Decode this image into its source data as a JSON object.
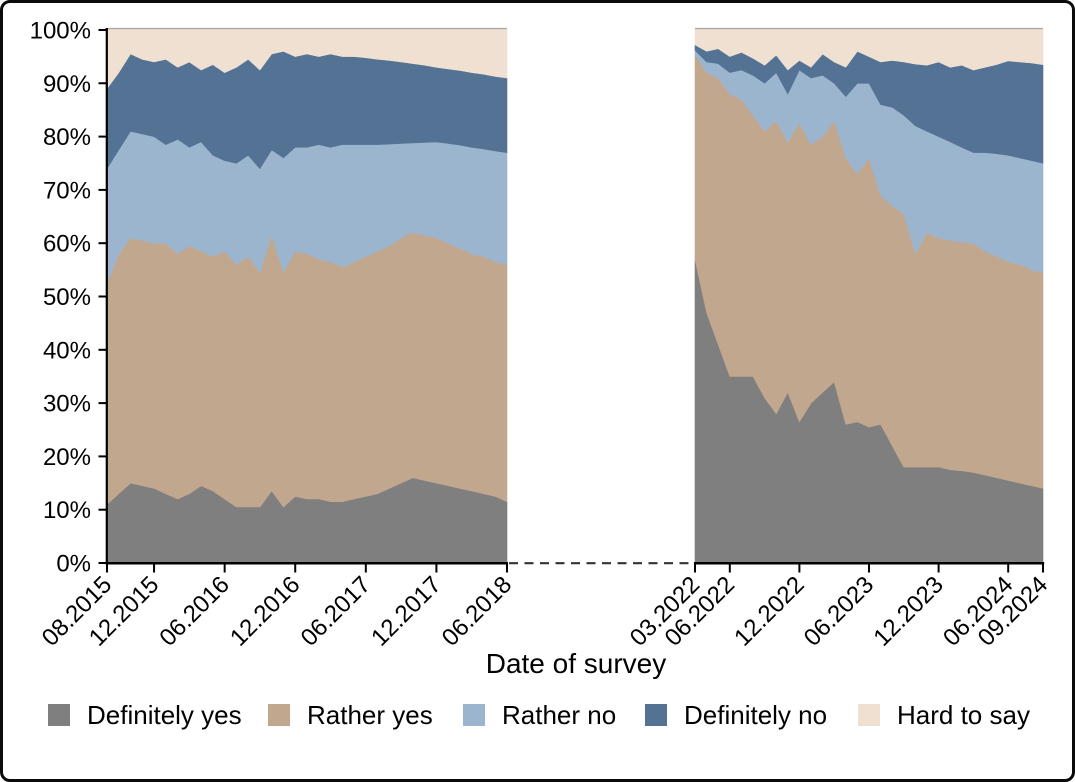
{
  "chart_data": {
    "type": "area",
    "stacked": true,
    "ylim": [
      0,
      100
    ],
    "grid": false,
    "legend_position": "bottom",
    "axis_break_between_panels": true,
    "xlabel": "Date of survey",
    "yticks": [
      "0%",
      "10%",
      "20%",
      "30%",
      "40%",
      "50%",
      "60%",
      "70%",
      "80%",
      "90%",
      "100%"
    ],
    "legend": [
      {
        "label": "Definitely yes",
        "color": "#7f7f7f"
      },
      {
        "label": "Rather yes",
        "color": "#c2a78f"
      },
      {
        "label": "Rather no",
        "color": "#9cb5ce"
      },
      {
        "label": "Definitely no",
        "color": "#547394"
      },
      {
        "label": "Hard to say",
        "color": "#efe0d2"
      }
    ],
    "panels": [
      {
        "name": "2015-2018",
        "point_interval": "monthly",
        "first_point": "08.2015",
        "last_point": "06.2018",
        "ticks": [
          {
            "label": "08.2015",
            "m": 0
          },
          {
            "label": "12.2015",
            "m": 4
          },
          {
            "label": "06.2016",
            "m": 10
          },
          {
            "label": "12.2016",
            "m": 16
          },
          {
            "label": "06.2017",
            "m": 22
          },
          {
            "label": "12.2017",
            "m": 28
          },
          {
            "label": "06.2018",
            "m": 34
          }
        ],
        "series": [
          {
            "name": "Definitely yes",
            "values": [
              11,
              13,
              15,
              14.5,
              14,
              13,
              12,
              13,
              14.5,
              13.5,
              12,
              10.5,
              10.5,
              10.5,
              13.5,
              10.5,
              12.5,
              12,
              12,
              11.5,
              11.5,
              12,
              12.5,
              13,
              14,
              15,
              16,
              15.5,
              15,
              14.5,
              14,
              13.5,
              13,
              12.5,
              11.5
            ]
          },
          {
            "name": "Rather yes",
            "values": [
              41.5,
              45,
              46,
              46,
              46,
              47,
              46,
              46.5,
              44,
              44,
              46.5,
              45.5,
              47,
              44,
              48,
              44,
              46,
              46,
              45,
              45,
              44,
              44.5,
              45,
              45.5,
              45.5,
              46,
              46,
              46,
              46,
              45.5,
              45,
              44.5,
              44.5,
              44,
              44.5
            ]
          },
          {
            "name": "Rather no",
            "values": [
              21.5,
              19.5,
              20,
              20,
              20,
              18.5,
              21.5,
              18.5,
              20.5,
              19,
              17,
              19,
              19,
              19.5,
              16,
              21.5,
              19.5,
              20,
              21.5,
              21.5,
              23,
              22,
              21,
              20,
              19.1,
              17.7,
              16.8,
              17.4,
              18,
              18.7,
              19.4,
              20,
              20.2,
              20.8,
              21
            ]
          },
          {
            "name": "Definitely no",
            "values": [
              15,
              14.5,
              14.5,
              14,
              14,
              16,
              13.5,
              16,
              13.5,
              17,
              16.5,
              18,
              18,
              18.5,
              18,
              20,
              17,
              17.5,
              16.5,
              17.5,
              16.5,
              16.5,
              16.3,
              16,
              15.7,
              15.3,
              14.9,
              14.5,
              14,
              14,
              14,
              14,
              14,
              14,
              14
            ]
          },
          {
            "name": "Hard to say",
            "values": [
              11,
              8,
              4.5,
              5.5,
              6,
              5.5,
              7,
              6,
              7.5,
              6.5,
              8,
              7,
              5.5,
              7.5,
              4.5,
              4,
              5,
              4.5,
              5,
              4.5,
              5,
              5,
              5.2,
              5.5,
              5.7,
              6,
              6.3,
              6.6,
              7,
              7.3,
              7.6,
              8,
              8.3,
              8.7,
              9
            ]
          }
        ]
      },
      {
        "name": "2022-2024",
        "point_interval": "monthly",
        "first_point": "03.2022",
        "last_point": "09.2024",
        "ticks": [
          {
            "label": "03.2022",
            "m": 0
          },
          {
            "label": "06.2022",
            "m": 3
          },
          {
            "label": "12.2022",
            "m": 9
          },
          {
            "label": "06.2023",
            "m": 15
          },
          {
            "label": "12.2023",
            "m": 21
          },
          {
            "label": "06.2024",
            "m": 27
          },
          {
            "label": "09.2024",
            "m": 30
          }
        ],
        "series": [
          {
            "name": "Definitely yes",
            "values": [
              57,
              47,
              41,
              35,
              35,
              35,
              31,
              28,
              32,
              26.5,
              30,
              32,
              34,
              26,
              26.5,
              25.5,
              26,
              22,
              18,
              18,
              18,
              18,
              17.5,
              17.3,
              17,
              16.5,
              16,
              15.5,
              15,
              14.5,
              14
            ]
          },
          {
            "name": "Rather yes",
            "values": [
              38.5,
              45,
              50,
              53,
              52,
              49,
              50,
              55,
              47,
              56,
              48.5,
              48,
              49,
              50,
              46.5,
              50.5,
              43,
              45,
              47.5,
              40,
              44,
              43,
              43,
              42.9,
              43,
              42,
              41.5,
              41,
              41,
              40.5,
              40.5
            ]
          },
          {
            "name": "Rather no",
            "values": [
              0.7,
              2,
              2.7,
              4,
              5.5,
              7.5,
              9,
              9,
              9,
              10,
              12.5,
              11.5,
              7,
              11.5,
              17,
              14,
              17,
              18.5,
              18.5,
              24,
              19,
              19,
              18.5,
              17.8,
              17,
              18.5,
              19.3,
              20,
              20,
              20.5,
              20.5
            ]
          },
          {
            "name": "Definitely no",
            "values": [
              1,
              2,
              2.8,
              3,
              3.3,
              3.2,
              3.4,
              3.3,
              4.5,
              1.8,
              2,
              4,
              4,
              5.5,
              6,
              5,
              8,
              8.8,
              10,
              11.6,
              12.4,
              14,
              14,
              15.4,
              15.5,
              16,
              16.7,
              17.7,
              18,
              18.3,
              18.5
            ]
          },
          {
            "name": "Hard to say",
            "values": [
              2.8,
              4,
              3.5,
              5,
              4.2,
              5.3,
              6.6,
              4.7,
              7.5,
              5.7,
              7,
              4.5,
              6,
              7,
              4,
              5,
              6,
              5.7,
              6,
              6.4,
              6.6,
              6,
              7,
              6.6,
              7.5,
              7,
              6.5,
              5.8,
              6,
              6.2,
              6.5
            ]
          }
        ]
      }
    ]
  }
}
